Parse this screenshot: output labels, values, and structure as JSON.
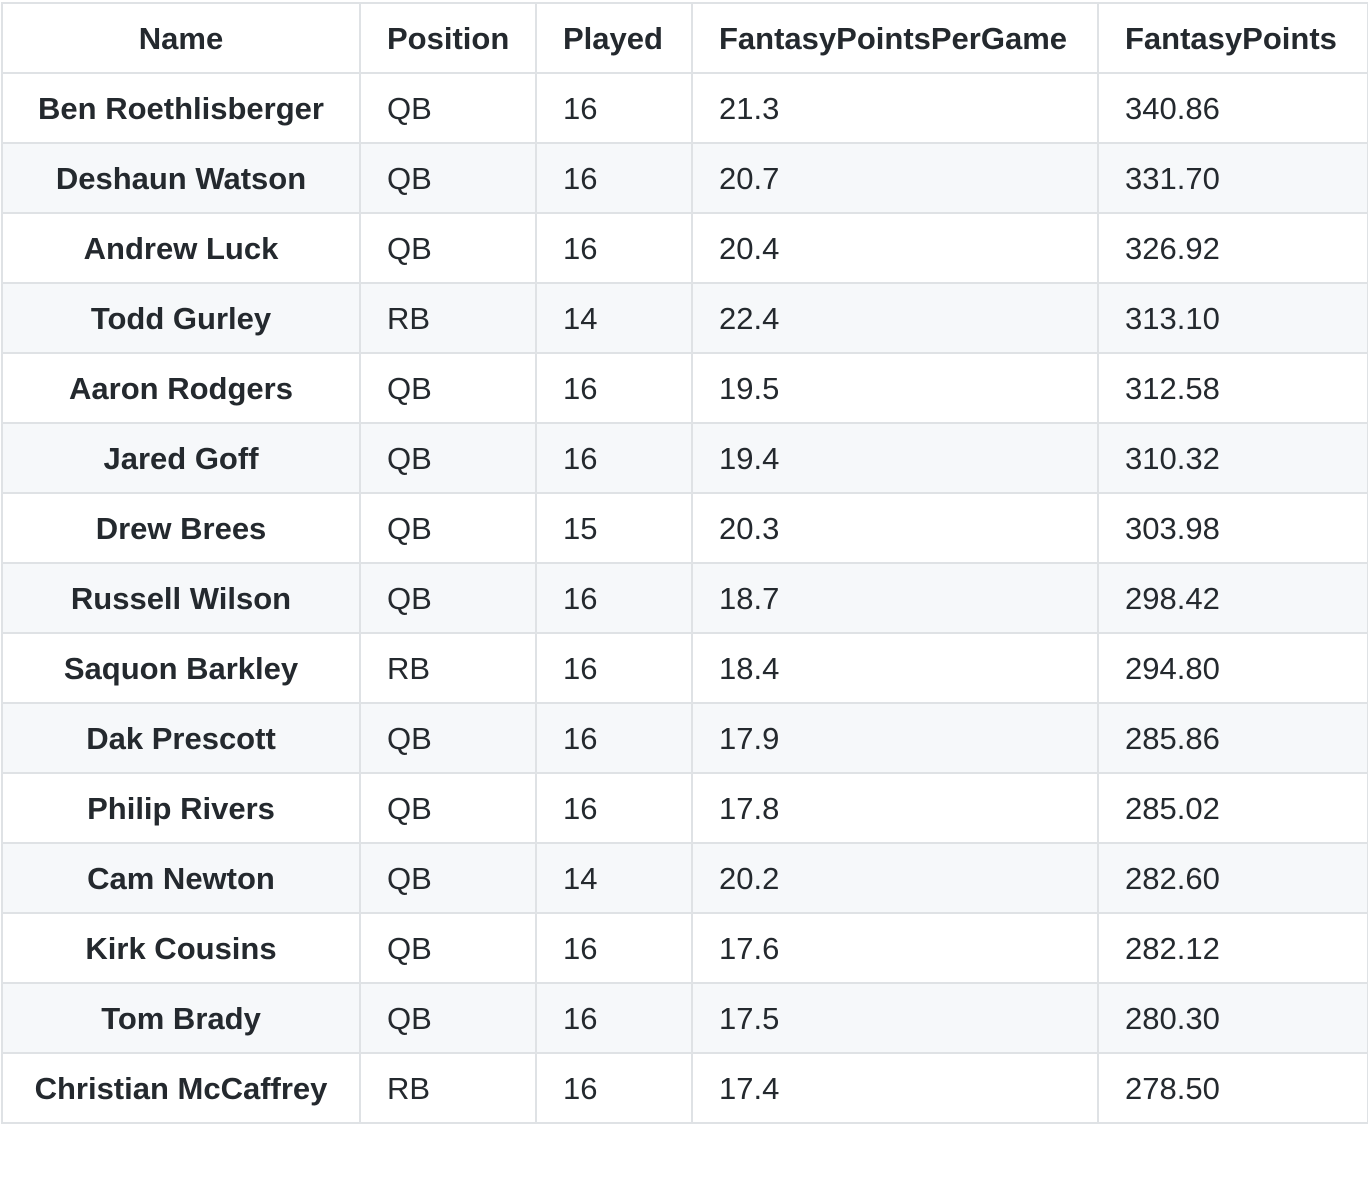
{
  "table": {
    "headers": [
      "Name",
      "Position",
      "Played",
      "FantasyPointsPerGame",
      "FantasyPoints"
    ],
    "rows": [
      [
        "Ben Roethlisberger",
        "QB",
        "16",
        "21.3",
        "340.86"
      ],
      [
        "Deshaun Watson",
        "QB",
        "16",
        "20.7",
        "331.70"
      ],
      [
        "Andrew Luck",
        "QB",
        "16",
        "20.4",
        "326.92"
      ],
      [
        "Todd Gurley",
        "RB",
        "14",
        "22.4",
        "313.10"
      ],
      [
        "Aaron Rodgers",
        "QB",
        "16",
        "19.5",
        "312.58"
      ],
      [
        "Jared Goff",
        "QB",
        "16",
        "19.4",
        "310.32"
      ],
      [
        "Drew Brees",
        "QB",
        "15",
        "20.3",
        "303.98"
      ],
      [
        "Russell Wilson",
        "QB",
        "16",
        "18.7",
        "298.42"
      ],
      [
        "Saquon Barkley",
        "RB",
        "16",
        "18.4",
        "294.80"
      ],
      [
        "Dak Prescott",
        "QB",
        "16",
        "17.9",
        "285.86"
      ],
      [
        "Philip Rivers",
        "QB",
        "16",
        "17.8",
        "285.02"
      ],
      [
        "Cam Newton",
        "QB",
        "14",
        "20.2",
        "282.60"
      ],
      [
        "Kirk Cousins",
        "QB",
        "16",
        "17.6",
        "282.12"
      ],
      [
        "Tom Brady",
        "QB",
        "16",
        "17.5",
        "280.30"
      ],
      [
        "Christian McCaffrey",
        "RB",
        "16",
        "17.4",
        "278.50"
      ]
    ]
  },
  "colors": {
    "border": "#dfe2e5",
    "stripe": "#f6f8fa",
    "text": "#24292e"
  }
}
